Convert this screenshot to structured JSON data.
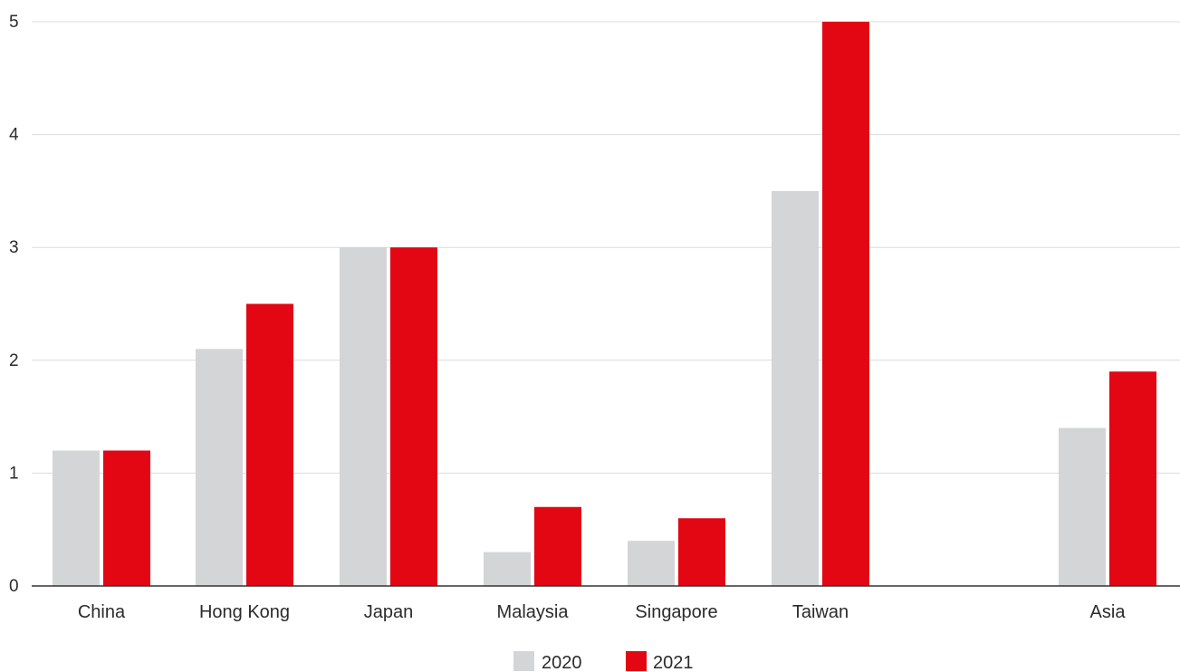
{
  "chart_data": {
    "type": "bar",
    "categories": [
      "China",
      "Hong Kong",
      "Japan",
      "Malaysia",
      "Singapore",
      "Taiwan",
      "",
      "Asia"
    ],
    "series": [
      {
        "name": "2020",
        "color": "#d4d5d7",
        "values": [
          1.2,
          2.1,
          3.0,
          0.3,
          0.4,
          3.5,
          null,
          1.4
        ]
      },
      {
        "name": "2021",
        "color": "#e30613",
        "values": [
          1.2,
          2.5,
          3.0,
          0.7,
          0.6,
          5.0,
          null,
          1.9
        ]
      }
    ],
    "yticks": [
      "0",
      "1",
      "2",
      "3",
      "4",
      "5"
    ],
    "ylim": [
      0,
      5
    ],
    "grid": true,
    "legend_position": "bottom-center",
    "title": "",
    "xlabel": "",
    "ylabel": ""
  }
}
